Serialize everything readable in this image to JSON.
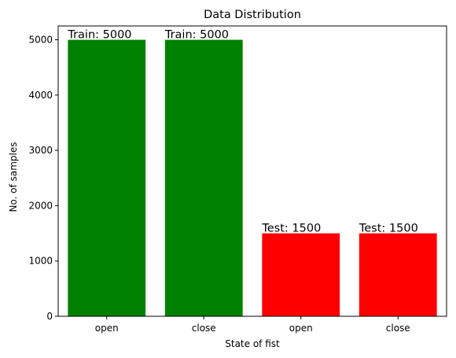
{
  "chart_data": {
    "type": "bar",
    "title": "Data Distribution",
    "xlabel": "State of fist",
    "ylabel": "No. of samples",
    "categories": [
      "open",
      "close",
      "open",
      "close"
    ],
    "values": [
      5000,
      5000,
      1500,
      1500
    ],
    "bar_colors": [
      "#008000",
      "#008000",
      "#ff0000",
      "#ff0000"
    ],
    "data_labels": [
      "Train: 5000",
      "Train: 5000",
      "Test: 1500",
      "Test: 1500"
    ],
    "yticks": [
      0,
      1000,
      2000,
      3000,
      4000,
      5000
    ],
    "ylim": [
      0,
      5250
    ],
    "grid": false
  }
}
